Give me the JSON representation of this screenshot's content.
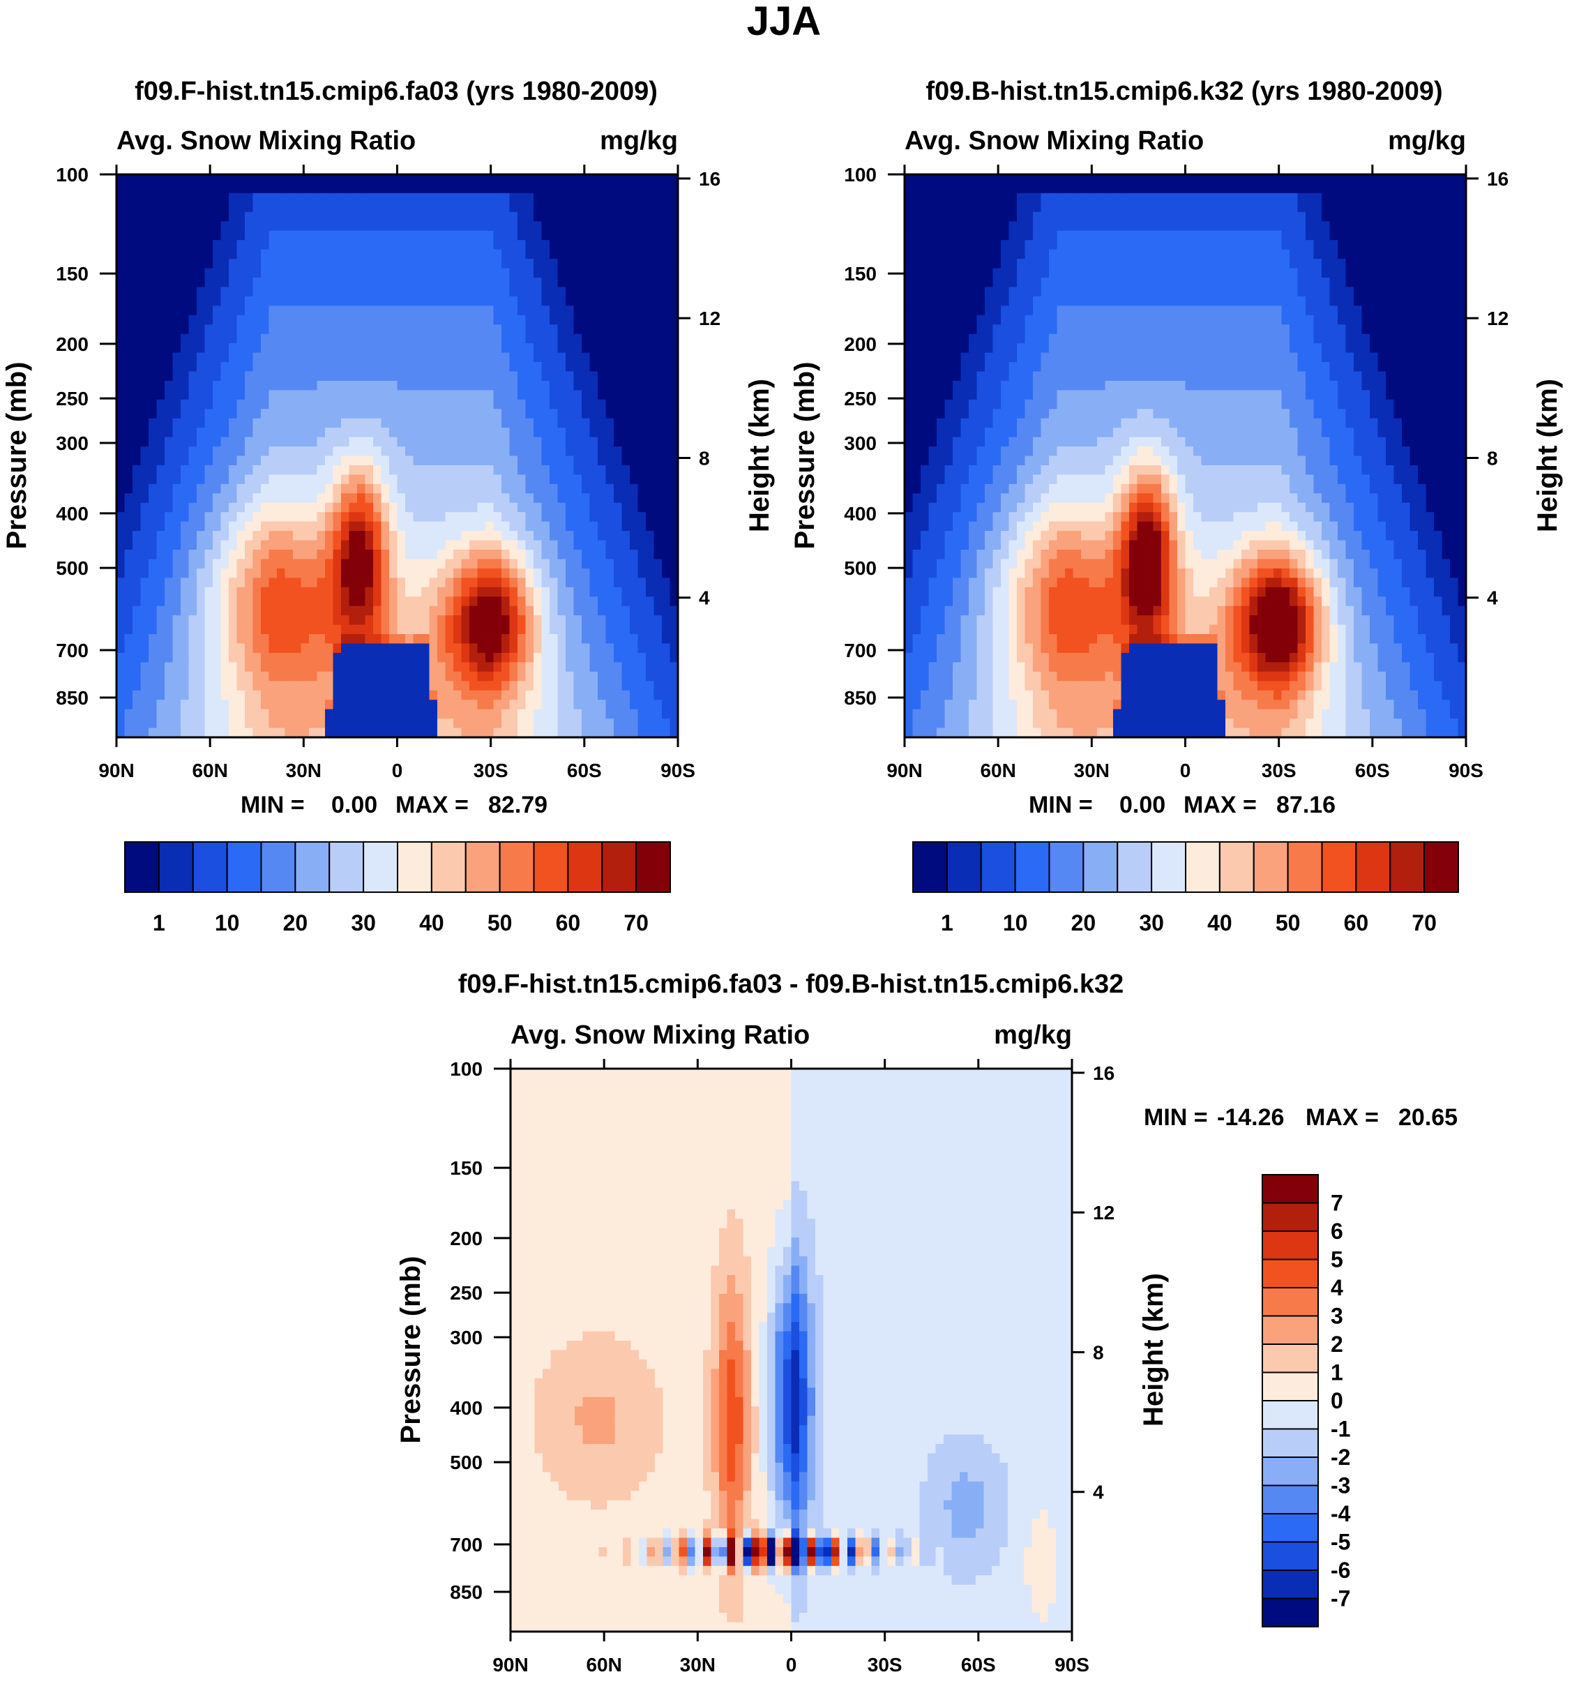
{
  "page": {
    "season_title": "JJA"
  },
  "chart_data": [
    {
      "type": "heatmap",
      "title": "f09.F-hist.tn15.cmip6.fa03 (yrs 1980-2009)",
      "variable": "Avg. Snow Mixing Ratio",
      "units": "mg/kg",
      "ylabel": "Pressure (mb)",
      "ylabel_right": "Height (km)",
      "x_ticks": [
        "90N",
        "60N",
        "30N",
        "0",
        "30S",
        "60S",
        "90S"
      ],
      "xlim": [
        90,
        -90
      ],
      "y_ticks": [
        "100",
        "150",
        "200",
        "250",
        "300",
        "400",
        "500",
        "700",
        "850"
      ],
      "ylim": [
        1000,
        100
      ],
      "height_ticks": [
        "16",
        "12",
        "8",
        "4"
      ],
      "stats": {
        "min_label": "MIN =",
        "min": "0.00",
        "max_label": "MAX =",
        "max": "82.79"
      },
      "levels": [
        "1",
        "10",
        "20",
        "30",
        "40",
        "50",
        "60",
        "70"
      ],
      "peak": 82.79
    },
    {
      "type": "heatmap",
      "title": "f09.B-hist.tn15.cmip6.k32 (yrs 1980-2009)",
      "variable": "Avg. Snow Mixing Ratio",
      "units": "mg/kg",
      "ylabel": "Pressure (mb)",
      "ylabel_right": "Height (km)",
      "x_ticks": [
        "90N",
        "60N",
        "30N",
        "0",
        "30S",
        "60S",
        "90S"
      ],
      "xlim": [
        90,
        -90
      ],
      "y_ticks": [
        "100",
        "150",
        "200",
        "250",
        "300",
        "400",
        "500",
        "700",
        "850"
      ],
      "ylim": [
        1000,
        100
      ],
      "height_ticks": [
        "16",
        "12",
        "8",
        "4"
      ],
      "stats": {
        "min_label": "MIN =",
        "min": "0.00",
        "max_label": "MAX =",
        "max": "87.16"
      },
      "levels": [
        "1",
        "10",
        "20",
        "30",
        "40",
        "50",
        "60",
        "70"
      ],
      "peak": 87.16
    },
    {
      "type": "heatmap",
      "title": "f09.F-hist.tn15.cmip6.fa03 - f09.B-hist.tn15.cmip6.k32",
      "variable": "Avg. Snow Mixing Ratio",
      "units": "mg/kg",
      "ylabel": "Pressure (mb)",
      "ylabel_right": "Height (km)",
      "x_ticks": [
        "90N",
        "60N",
        "30N",
        "0",
        "30S",
        "60S",
        "90S"
      ],
      "xlim": [
        90,
        -90
      ],
      "y_ticks": [
        "100",
        "150",
        "200",
        "250",
        "300",
        "400",
        "500",
        "700",
        "850"
      ],
      "ylim": [
        1000,
        100
      ],
      "height_ticks": [
        "16",
        "12",
        "8",
        "4"
      ],
      "stats": {
        "min_label": "MIN =",
        "min": "-14.26",
        "max_label": "MAX =",
        "max": "20.65"
      },
      "levels": [
        "7",
        "6",
        "5",
        "4",
        "3",
        "2",
        "1",
        "0",
        "-1",
        "-2",
        "-3",
        "-4",
        "-5",
        "-6",
        "-7"
      ]
    }
  ],
  "colors": {
    "abs_scale": [
      "#000b80",
      "#0a2db5",
      "#1a4fe0",
      "#2a6af5",
      "#5588f2",
      "#88aef5",
      "#b8cef8",
      "#dbe8fb",
      "#fdebdc",
      "#fbc9ae",
      "#f9a27c",
      "#f77a4a",
      "#f2521f",
      "#dc3712",
      "#b31f0d",
      "#830009"
    ],
    "diff_scale": [
      "#830009",
      "#b31f0d",
      "#dc3712",
      "#f2521f",
      "#f77a4a",
      "#f9a27c",
      "#fbc9ae",
      "#fdebdc",
      "#dbe8fb",
      "#b8cef8",
      "#88aef5",
      "#5588f2",
      "#2a6af5",
      "#1a4fe0",
      "#0a2db5",
      "#000b80"
    ]
  }
}
